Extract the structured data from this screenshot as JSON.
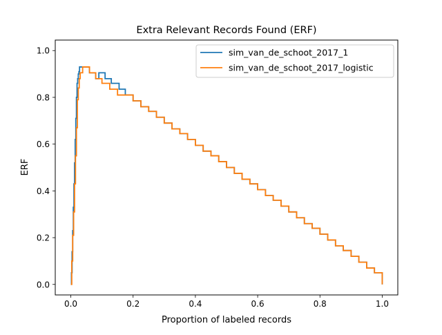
{
  "chart_data": {
    "type": "line",
    "title": "Extra Relevant Records Found (ERF)",
    "xlabel": "Proportion of labeled records",
    "ylabel": "ERF",
    "xlim": [
      -0.05,
      1.05
    ],
    "ylim": [
      -0.045,
      1.045
    ],
    "xticks": [
      0.0,
      0.2,
      0.4,
      0.6,
      0.8,
      1.0
    ],
    "xtick_labels": [
      "0.0",
      "0.2",
      "0.4",
      "0.6",
      "0.8",
      "1.0"
    ],
    "yticks": [
      0.0,
      0.2,
      0.4,
      0.6,
      0.8,
      1.0
    ],
    "ytick_labels": [
      "0.0",
      "0.2",
      "0.4",
      "0.6",
      "0.8",
      "1.0"
    ],
    "grid": false,
    "legend_position": "upper right",
    "series": [
      {
        "name": "sim_van_de_schoot_2017_1",
        "color": "#1f77b4",
        "step": "post",
        "x": [
          0.0,
          0.002,
          0.004,
          0.006,
          0.008,
          0.01,
          0.012,
          0.014,
          0.016,
          0.018,
          0.02,
          0.022,
          0.024,
          0.026,
          0.028,
          0.032,
          0.036,
          0.04,
          0.045,
          0.05,
          0.06,
          0.08,
          0.09,
          0.11,
          0.13,
          0.155,
          0.175,
          0.2,
          0.225,
          0.25,
          0.275,
          0.3,
          0.325,
          0.35,
          0.375,
          0.4,
          0.425,
          0.45,
          0.475,
          0.5,
          0.525,
          0.55,
          0.575,
          0.6,
          0.625,
          0.65,
          0.675,
          0.7,
          0.725,
          0.75,
          0.775,
          0.8,
          0.825,
          0.85,
          0.875,
          0.9,
          0.925,
          0.95,
          0.975,
          1.0
        ],
        "y": [
          0.0,
          0.05,
          0.14,
          0.23,
          0.33,
          0.43,
          0.52,
          0.62,
          0.71,
          0.8,
          0.86,
          0.88,
          0.9,
          0.91,
          0.93,
          0.93,
          0.93,
          0.93,
          0.93,
          0.93,
          0.905,
          0.88,
          0.905,
          0.88,
          0.86,
          0.835,
          0.81,
          0.785,
          0.76,
          0.74,
          0.715,
          0.69,
          0.665,
          0.645,
          0.62,
          0.595,
          0.57,
          0.55,
          0.525,
          0.5,
          0.475,
          0.45,
          0.43,
          0.405,
          0.38,
          0.36,
          0.335,
          0.31,
          0.285,
          0.26,
          0.24,
          0.215,
          0.19,
          0.165,
          0.145,
          0.12,
          0.095,
          0.07,
          0.05,
          0.0
        ]
      },
      {
        "name": "sim_van_de_schoot_2017_logistic",
        "color": "#ff7f0e",
        "step": "post",
        "x": [
          0.0,
          0.003,
          0.006,
          0.009,
          0.012,
          0.015,
          0.018,
          0.021,
          0.024,
          0.027,
          0.03,
          0.034,
          0.038,
          0.042,
          0.047,
          0.052,
          0.06,
          0.08,
          0.1,
          0.125,
          0.15,
          0.175,
          0.2,
          0.225,
          0.25,
          0.275,
          0.3,
          0.325,
          0.35,
          0.375,
          0.4,
          0.425,
          0.45,
          0.475,
          0.5,
          0.525,
          0.55,
          0.575,
          0.6,
          0.625,
          0.65,
          0.675,
          0.7,
          0.725,
          0.75,
          0.775,
          0.8,
          0.825,
          0.85,
          0.875,
          0.9,
          0.925,
          0.95,
          0.975,
          1.0
        ],
        "y": [
          0.0,
          0.1,
          0.21,
          0.31,
          0.43,
          0.55,
          0.67,
          0.79,
          0.84,
          0.88,
          0.905,
          0.905,
          0.93,
          0.93,
          0.93,
          0.93,
          0.905,
          0.88,
          0.86,
          0.835,
          0.81,
          0.81,
          0.785,
          0.76,
          0.74,
          0.715,
          0.69,
          0.665,
          0.645,
          0.62,
          0.595,
          0.57,
          0.55,
          0.525,
          0.5,
          0.475,
          0.45,
          0.43,
          0.405,
          0.38,
          0.36,
          0.335,
          0.31,
          0.285,
          0.26,
          0.24,
          0.215,
          0.19,
          0.165,
          0.145,
          0.12,
          0.095,
          0.07,
          0.05,
          0.0
        ]
      }
    ]
  }
}
